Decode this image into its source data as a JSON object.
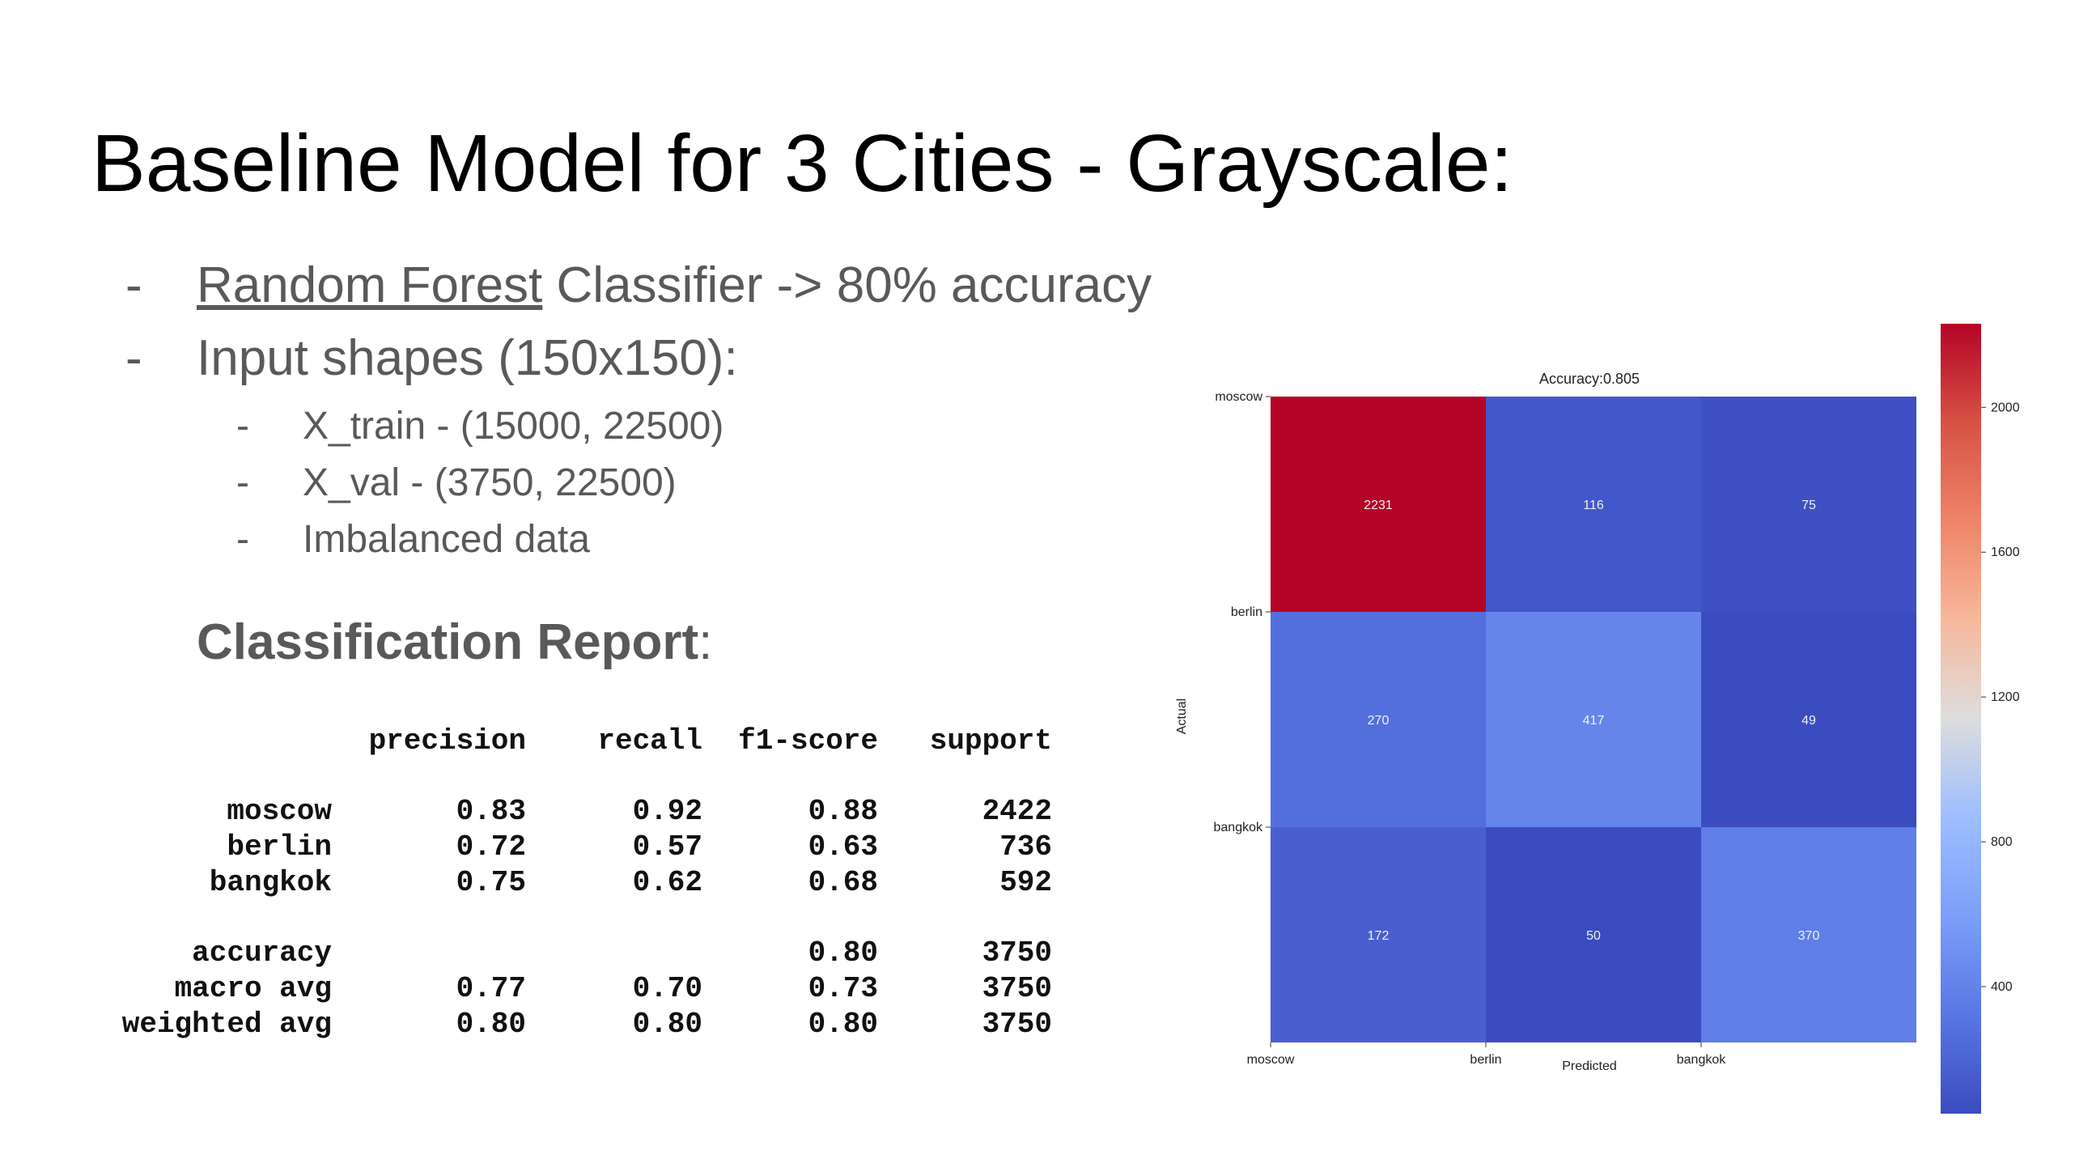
{
  "slide": {
    "title": "Baseline Model for 3 Cities - Grayscale:",
    "bullets": [
      {
        "dash": "-",
        "link": "Random Forest",
        "text": " Classifier -> 80% accuracy"
      },
      {
        "dash": "-",
        "text": "Input shapes (150x150):"
      }
    ],
    "sub_bullets": [
      {
        "dash": "-",
        "text": "X_train - (15000, 22500)"
      },
      {
        "dash": "-",
        "text": "X_val - (3750, 22500)"
      },
      {
        "dash": "-",
        "text": "Imbalanced data"
      }
    ],
    "report_heading": "Classification Report",
    "report_heading_colon": ":"
  },
  "report": {
    "headers": [
      "precision",
      "recall",
      "f1-score",
      "support"
    ],
    "rows": [
      {
        "label": "moscow",
        "values": [
          "0.83",
          "0.92",
          "0.88",
          "2422"
        ]
      },
      {
        "label": "berlin",
        "values": [
          "0.72",
          "0.57",
          "0.63",
          "736"
        ]
      },
      {
        "label": "bangkok",
        "values": [
          "0.75",
          "0.62",
          "0.68",
          "592"
        ]
      },
      {
        "label": "accuracy",
        "values": [
          "",
          "",
          "0.80",
          "3750"
        ]
      },
      {
        "label": "macro avg",
        "values": [
          "0.77",
          "0.70",
          "0.73",
          "3750"
        ]
      },
      {
        "label": "weighted avg",
        "values": [
          "0.80",
          "0.80",
          "0.80",
          "3750"
        ]
      }
    ]
  },
  "chart_data": {
    "type": "heatmap",
    "title": "Accuracy:0.805",
    "xlabel": "Predicted",
    "ylabel": "Actual",
    "x_categories": [
      "moscow",
      "berlin",
      "bangkok"
    ],
    "y_categories": [
      "moscow",
      "berlin",
      "bangkok"
    ],
    "values": [
      [
        2231,
        116,
        75
      ],
      [
        270,
        417,
        49
      ],
      [
        172,
        50,
        370
      ]
    ],
    "colormap": "coolwarm",
    "colorbar": {
      "min": 49,
      "max": 2231,
      "ticks": [
        400,
        800,
        1200,
        1600,
        2000
      ]
    }
  }
}
